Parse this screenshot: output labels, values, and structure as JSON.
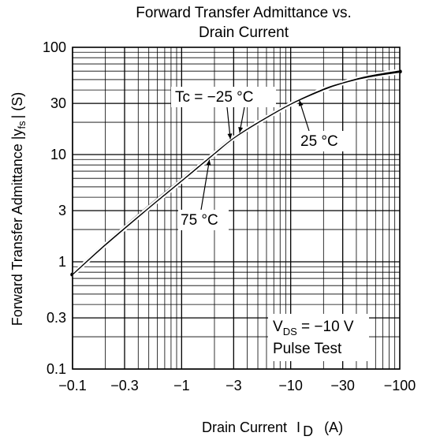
{
  "chart_data": {
    "type": "line",
    "title_lines": [
      "Forward Transfer Admittance vs.",
      "Drain Current"
    ],
    "xlabel": "Drain Current",
    "xlabel_symbol": "I",
    "xlabel_sub": "D",
    "xlabel_unit": "(A)",
    "ylabel": "Forward Transfer Admittance  |y",
    "ylabel_sub": "fs",
    "ylabel_unit": "| (S)",
    "x_scale": "log",
    "y_scale": "log",
    "x_axis_negative": true,
    "xlim": [
      -0.1,
      -100
    ],
    "ylim": [
      0.1,
      100
    ],
    "x_ticks": [
      {
        "value": -0.1,
        "label": "−0.1"
      },
      {
        "value": -0.3,
        "label": "−0.3"
      },
      {
        "value": -1,
        "label": "−1"
      },
      {
        "value": -3,
        "label": "−3"
      },
      {
        "value": -10,
        "label": "−10"
      },
      {
        "value": -30,
        "label": "−30"
      },
      {
        "value": -100,
        "label": "−100"
      }
    ],
    "y_ticks": [
      {
        "value": 0.1,
        "label": "0.1"
      },
      {
        "value": 0.3,
        "label": "0.3"
      },
      {
        "value": 1,
        "label": "1"
      },
      {
        "value": 3,
        "label": "3"
      },
      {
        "value": 10,
        "label": "10"
      },
      {
        "value": 30,
        "label": "30"
      },
      {
        "value": 100,
        "label": "100"
      }
    ],
    "grid": true,
    "series": [
      {
        "name": "Tc = −25 °C",
        "x": [
          -0.1,
          -0.2,
          -0.5,
          -1,
          -2,
          -3,
          -5,
          -10,
          -20,
          -30,
          -50,
          -100
        ],
        "y": [
          0.79,
          1.5,
          3.3,
          5.9,
          10.6,
          14.7,
          20.5,
          30.5,
          42,
          48,
          55,
          62
        ]
      },
      {
        "name": "25 °C",
        "x": [
          -0.1,
          -0.2,
          -0.5,
          -1,
          -2,
          -3,
          -5,
          -10,
          -20,
          -30,
          -50,
          -100
        ],
        "y": [
          0.76,
          1.44,
          3.2,
          5.7,
          10.2,
          14.2,
          19.8,
          29.5,
          40.5,
          46.5,
          53,
          59.5
        ]
      },
      {
        "name": "75 °C",
        "x": [
          -0.1,
          -0.2,
          -0.5,
          -1,
          -2,
          -3,
          -5,
          -10,
          -20,
          -30,
          -50,
          -100
        ],
        "y": [
          0.73,
          1.38,
          3.05,
          5.45,
          9.8,
          13.7,
          19.1,
          28.5,
          39,
          45,
          51,
          57
        ]
      }
    ],
    "annotations": {
      "series_labels": [
        "Tc = −25 °C",
        "25 °C",
        "75 °C"
      ],
      "conditions_line1_prefix": "V",
      "conditions_line1_sub": "DS",
      "conditions_line1_value": " = −10 V",
      "conditions_line2": "Pulse Test"
    }
  }
}
